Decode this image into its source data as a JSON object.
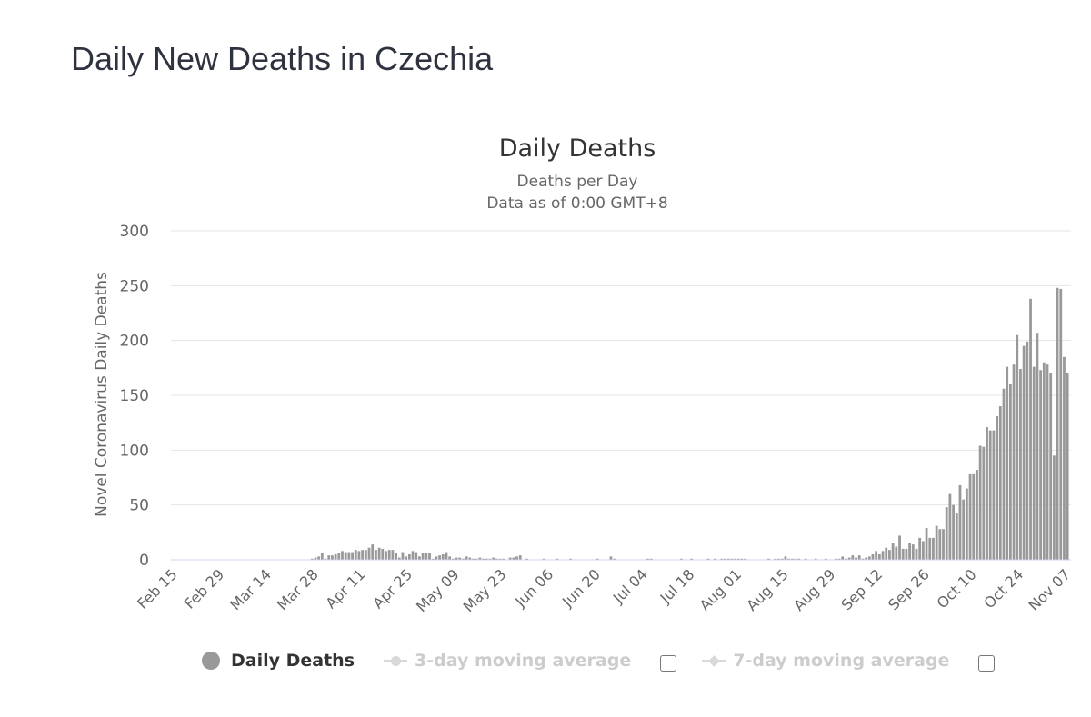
{
  "page": {
    "title": "Daily New Deaths in Czechia"
  },
  "chart_data": {
    "type": "bar",
    "title": "Daily Deaths",
    "subtitle_lines": [
      "Deaths per Day",
      "Data as of 0:00 GMT+8"
    ],
    "xlabel": "",
    "ylabel": "Novel Coronavirus Daily Deaths",
    "ylim": [
      0,
      300
    ],
    "yticks": [
      0,
      50,
      100,
      150,
      200,
      250,
      300
    ],
    "start_date": "Feb 15",
    "xtick_labels": [
      "Feb 15",
      "Feb 29",
      "Mar 14",
      "Mar 28",
      "Apr 11",
      "Apr 25",
      "May 09",
      "May 23",
      "Jun 06",
      "Jun 20",
      "Jul 04",
      "Jul 18",
      "Aug 01",
      "Aug 15",
      "Aug 29",
      "Sep 12",
      "Sep 26",
      "Oct 10",
      "Oct 24",
      "Nov 07"
    ],
    "xtick_step_days": 14,
    "bar_color": "#999999",
    "series": [
      {
        "name": "Daily Deaths",
        "values": [
          0,
          0,
          0,
          0,
          0,
          0,
          0,
          0,
          0,
          0,
          0,
          0,
          0,
          0,
          0,
          0,
          0,
          0,
          0,
          0,
          0,
          0,
          0,
          0,
          0,
          0,
          0,
          0,
          0,
          0,
          0,
          0,
          0,
          0,
          0,
          0,
          0,
          0,
          0,
          0,
          0,
          1,
          2,
          3,
          6,
          1,
          4,
          4,
          5,
          6,
          8,
          7,
          7,
          7,
          9,
          8,
          9,
          9,
          11,
          14,
          9,
          11,
          10,
          8,
          9,
          9,
          6,
          2,
          7,
          3,
          5,
          8,
          7,
          3,
          6,
          6,
          6,
          1,
          3,
          4,
          5,
          7,
          3,
          1,
          2,
          2,
          1,
          3,
          2,
          1,
          1,
          2,
          1,
          1,
          1,
          2,
          1,
          1,
          1,
          0,
          2,
          2,
          3,
          4,
          0,
          1,
          0,
          0,
          0,
          0,
          1,
          0,
          0,
          0,
          1,
          0,
          0,
          0,
          1,
          0,
          0,
          0,
          0,
          0,
          0,
          0,
          1,
          0,
          0,
          0,
          3,
          1,
          0,
          0,
          0,
          0,
          0,
          0,
          0,
          0,
          0,
          1,
          1,
          0,
          0,
          0,
          0,
          0,
          0,
          0,
          0,
          1,
          0,
          0,
          1,
          0,
          0,
          0,
          0,
          1,
          0,
          1,
          0,
          1,
          1,
          1,
          1,
          1,
          1,
          1,
          1,
          0,
          0,
          0,
          0,
          0,
          0,
          1,
          0,
          1,
          1,
          1,
          3,
          1,
          1,
          1,
          1,
          0,
          1,
          0,
          0,
          1,
          0,
          0,
          1,
          0,
          0,
          1,
          1,
          3,
          1,
          2,
          4,
          2,
          4,
          1,
          2,
          3,
          5,
          8,
          5,
          8,
          11,
          9,
          15,
          12,
          22,
          10,
          10,
          15,
          14,
          10,
          20,
          17,
          29,
          20,
          20,
          31,
          28,
          28,
          48,
          60,
          50,
          43,
          68,
          55,
          65,
          78,
          78,
          82,
          104,
          103,
          121,
          118,
          118,
          131,
          140,
          156,
          176,
          160,
          178,
          205,
          174,
          195,
          199,
          238,
          176,
          207,
          173,
          180,
          178,
          170,
          95,
          248,
          247,
          185,
          170
        ],
        "legend_visible": true
      },
      {
        "name": "3-day moving average",
        "legend_visible": false
      },
      {
        "name": "7-day moving average",
        "legend_visible": false
      }
    ]
  },
  "legend": {
    "items": [
      {
        "label": "Daily Deaths"
      },
      {
        "label": "3-day moving average"
      },
      {
        "label": "7-day moving average"
      }
    ]
  }
}
